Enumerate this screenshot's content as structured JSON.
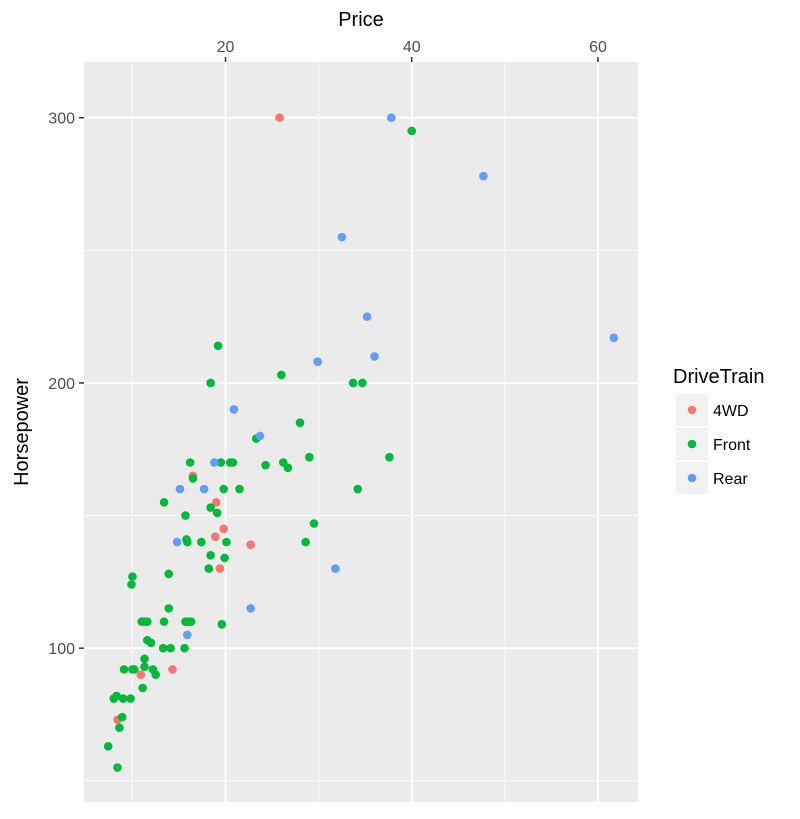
{
  "chart_data": {
    "type": "scatter",
    "xlabel": "Price",
    "ylabel": "Horsepower",
    "x_axis_position": "top",
    "xlim": [
      4.8,
      64.3
    ],
    "ylim": [
      42,
      321
    ],
    "x_ticks": [
      20,
      40,
      60
    ],
    "x_minor": [
      10,
      30,
      50
    ],
    "y_ticks": [
      100,
      200,
      300
    ],
    "y_minor": [
      50,
      150,
      250
    ],
    "grid": true,
    "legend": {
      "title": "DriveTrain",
      "position": "right"
    },
    "series": [
      {
        "name": "4WD",
        "color": "#F8766D",
        "points": [
          [
            25.8,
            300
          ],
          [
            8.4,
            73
          ],
          [
            14.3,
            92
          ],
          [
            10.9,
            90
          ],
          [
            16.5,
            165
          ],
          [
            19.0,
            155
          ],
          [
            19.8,
            145
          ],
          [
            18.9,
            142
          ],
          [
            22.7,
            139
          ],
          [
            19.4,
            130
          ]
        ]
      },
      {
        "name": "Front",
        "color": "#00BA38",
        "points": [
          [
            40.0,
            295
          ],
          [
            19.2,
            214
          ],
          [
            26.0,
            203
          ],
          [
            18.4,
            200
          ],
          [
            33.7,
            200
          ],
          [
            34.7,
            200
          ],
          [
            28.0,
            185
          ],
          [
            23.3,
            179
          ],
          [
            16.2,
            170
          ],
          [
            19.5,
            170
          ],
          [
            20.5,
            170
          ],
          [
            20.8,
            170
          ],
          [
            24.3,
            169
          ],
          [
            26.2,
            170
          ],
          [
            26.7,
            168
          ],
          [
            29.0,
            172
          ],
          [
            37.6,
            172
          ],
          [
            16.5,
            164
          ],
          [
            19.8,
            160
          ],
          [
            21.5,
            160
          ],
          [
            34.2,
            160
          ],
          [
            13.4,
            155
          ],
          [
            18.4,
            153
          ],
          [
            19.1,
            151
          ],
          [
            15.7,
            150
          ],
          [
            29.5,
            147
          ],
          [
            15.8,
            141
          ],
          [
            15.9,
            140
          ],
          [
            17.4,
            140
          ],
          [
            20.1,
            140
          ],
          [
            28.6,
            140
          ],
          [
            18.4,
            135
          ],
          [
            19.9,
            134
          ],
          [
            18.2,
            130
          ],
          [
            13.9,
            128
          ],
          [
            10.0,
            127
          ],
          [
            9.9,
            124
          ],
          [
            13.9,
            115
          ],
          [
            11.0,
            110
          ],
          [
            11.3,
            110
          ],
          [
            11.6,
            110
          ],
          [
            13.4,
            110
          ],
          [
            15.7,
            110
          ],
          [
            16.0,
            110
          ],
          [
            16.3,
            110
          ],
          [
            19.6,
            109
          ],
          [
            11.6,
            103
          ],
          [
            12.0,
            102
          ],
          [
            13.3,
            100
          ],
          [
            14.1,
            100
          ],
          [
            15.6,
            100
          ],
          [
            11.3,
            96
          ],
          [
            11.3,
            93
          ],
          [
            9.1,
            92
          ],
          [
            10.0,
            92
          ],
          [
            10.2,
            92
          ],
          [
            12.2,
            92
          ],
          [
            12.5,
            90
          ],
          [
            11.1,
            85
          ],
          [
            8.0,
            81
          ],
          [
            8.3,
            82
          ],
          [
            9.0,
            81
          ],
          [
            9.8,
            81
          ],
          [
            8.9,
            74
          ],
          [
            8.6,
            70
          ],
          [
            7.4,
            63
          ],
          [
            8.4,
            55
          ]
        ]
      },
      {
        "name": "Rear",
        "color": "#619CFF",
        "points": [
          [
            37.8,
            300
          ],
          [
            47.7,
            278
          ],
          [
            32.5,
            255
          ],
          [
            35.2,
            225
          ],
          [
            36.0,
            210
          ],
          [
            29.9,
            208
          ],
          [
            61.7,
            217
          ],
          [
            20.9,
            190
          ],
          [
            23.7,
            180
          ],
          [
            18.8,
            170
          ],
          [
            17.7,
            160
          ],
          [
            15.1,
            160
          ],
          [
            14.8,
            140
          ],
          [
            15.9,
            105
          ],
          [
            22.7,
            115
          ],
          [
            31.8,
            130
          ]
        ]
      }
    ]
  }
}
